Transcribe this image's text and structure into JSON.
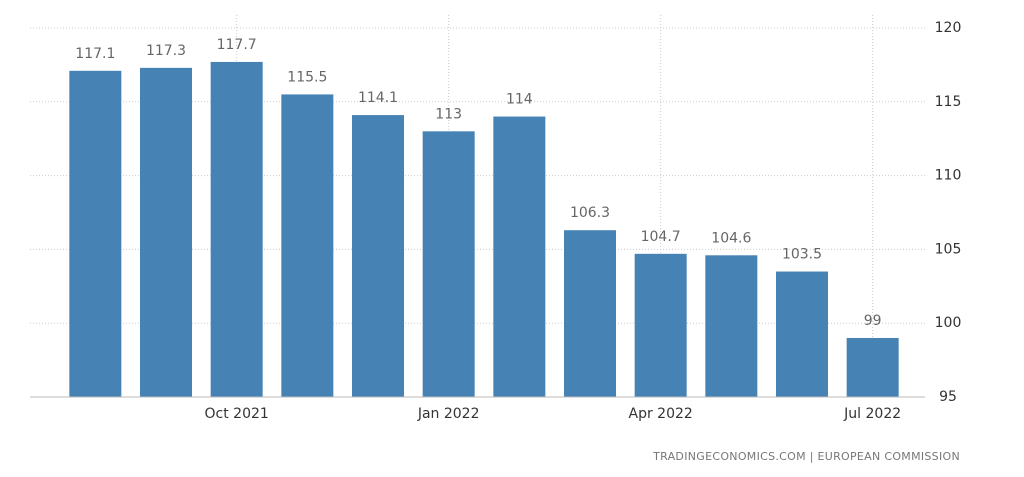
{
  "chart_data": {
    "type": "bar",
    "categories": [
      null,
      null,
      "Oct 2021",
      null,
      null,
      "Jan 2022",
      null,
      null,
      "Apr 2022",
      null,
      null,
      "Jul 2022"
    ],
    "values": [
      117.1,
      117.3,
      117.7,
      115.5,
      114.1,
      113,
      114,
      106.3,
      104.7,
      104.6,
      103.5,
      99
    ],
    "color": "#4682b4",
    "ylim": [
      95,
      120
    ],
    "yticks": [
      95,
      100,
      105,
      110,
      115,
      120
    ],
    "grid": true,
    "source": "TRADINGECONOMICS.COM  |  EUROPEAN COMMISSION"
  }
}
